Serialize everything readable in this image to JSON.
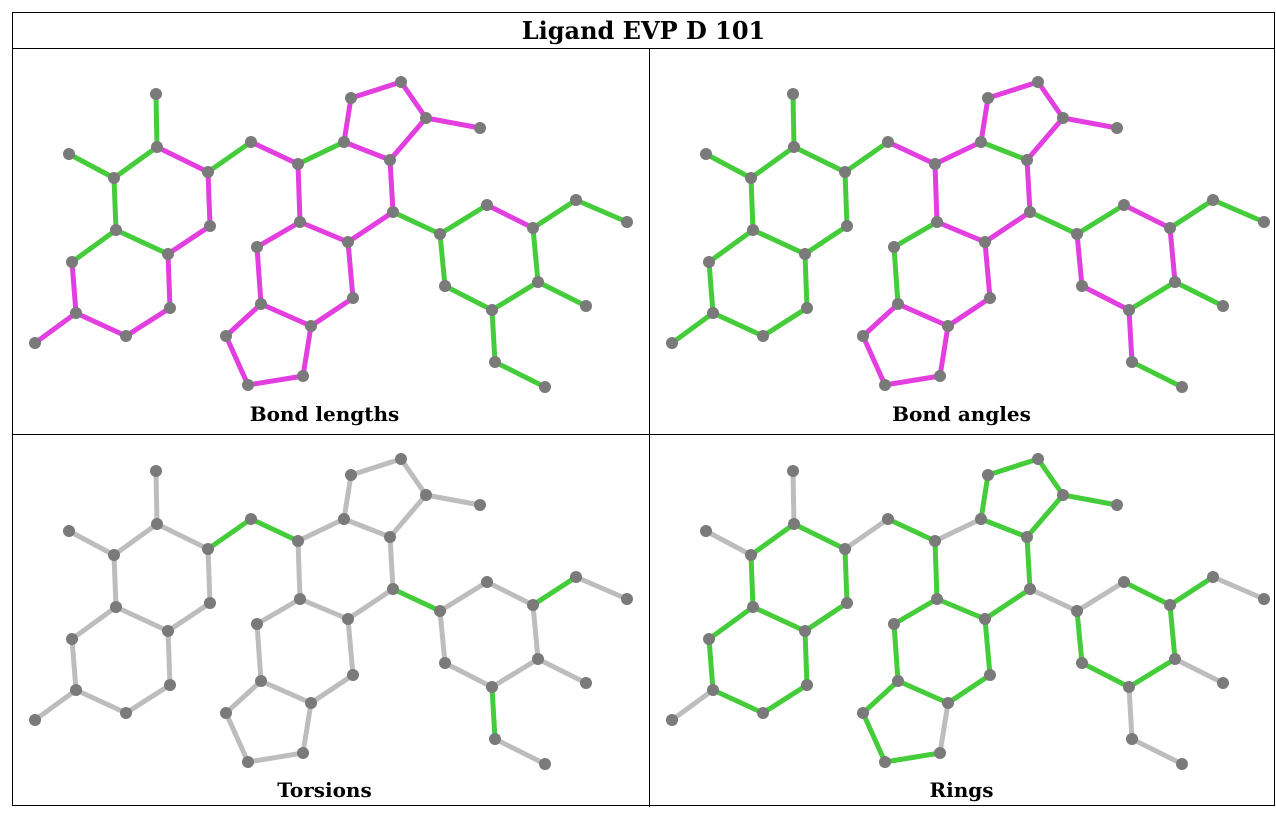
{
  "title": "Ligand EVP D 101",
  "panels": [
    {
      "caption": "Bond lengths",
      "scheme": "lengths"
    },
    {
      "caption": "Bond angles",
      "scheme": "angles"
    },
    {
      "caption": "Torsions",
      "scheme": "torsions"
    },
    {
      "caption": "Rings",
      "scheme": "rings"
    }
  ],
  "colors": {
    "ok": "#45cc3a",
    "outlier": "#e23ee0",
    "neutral": "#bdbdbd",
    "atom": "#7a7a7a"
  }
}
